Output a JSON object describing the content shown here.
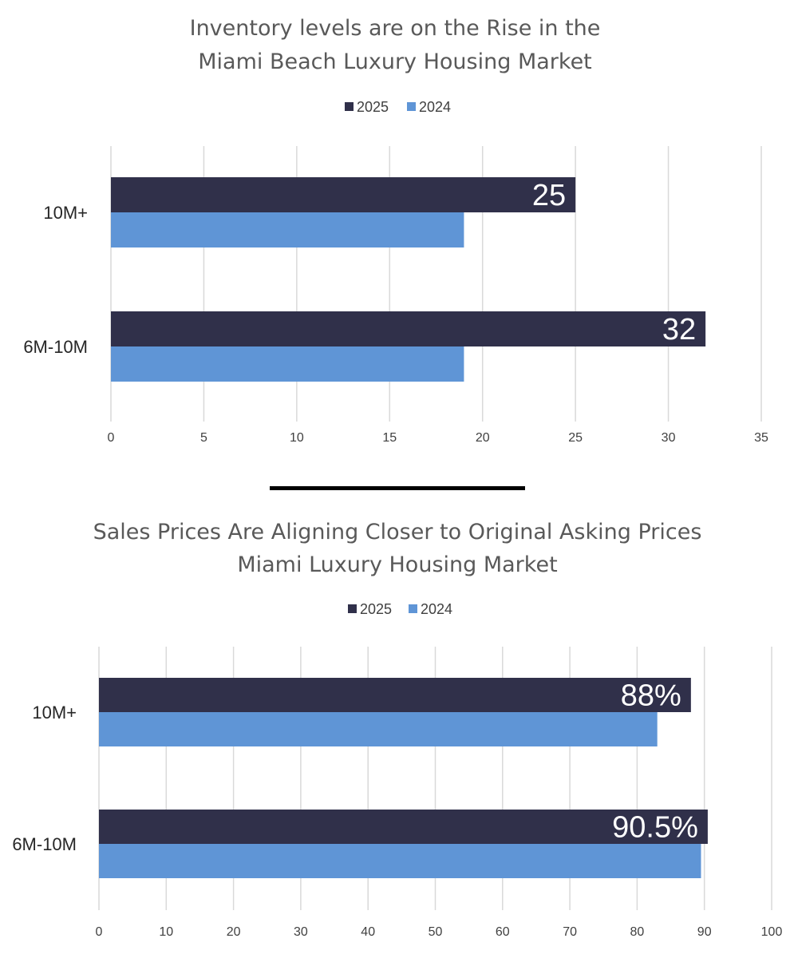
{
  "colors": {
    "series_2025": "#30304a",
    "series_2024": "#5f95d6",
    "divider": "#000000"
  },
  "chart_data": [
    {
      "type": "bar",
      "orientation": "horizontal",
      "title": [
        "Inventory levels are on the Rise in the",
        "Miami Beach Luxury Housing Market"
      ],
      "categories": [
        "10M+",
        "6M-10M"
      ],
      "series": [
        {
          "name": "2025",
          "values": [
            25,
            32
          ],
          "labels": [
            "25",
            "32"
          ]
        },
        {
          "name": "2024",
          "values": [
            19,
            19
          ]
        }
      ],
      "xlim": [
        0,
        35
      ],
      "xticks": [
        "0",
        "5",
        "10",
        "15",
        "20",
        "25",
        "30",
        "35"
      ],
      "grid": true,
      "legend": "top-center"
    },
    {
      "type": "bar",
      "orientation": "horizontal",
      "title": [
        "Sales Prices Are Aligning Closer to Original Asking Prices",
        "Miami Luxury Housing Market"
      ],
      "categories": [
        "10M+",
        "6M-10M"
      ],
      "series": [
        {
          "name": "2025",
          "values": [
            88,
            90.5
          ],
          "labels": [
            "88%",
            "90.5%"
          ]
        },
        {
          "name": "2024",
          "values": [
            83,
            89.5
          ]
        }
      ],
      "xlim": [
        0,
        100
      ],
      "xticks": [
        "0",
        "10",
        "20",
        "30",
        "40",
        "50",
        "60",
        "70",
        "80",
        "90",
        "100"
      ],
      "grid": true,
      "legend": "top-center"
    }
  ]
}
